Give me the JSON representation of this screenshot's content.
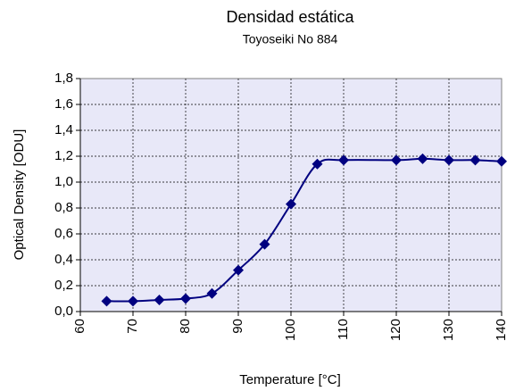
{
  "chart_data": {
    "type": "line",
    "title": "Densidad estática",
    "subtitle": "Toyoseiki No 884",
    "x_label": "Temperature [°C]",
    "y_label": "Optical Density [ODU]",
    "x": [
      65,
      70,
      75,
      80,
      85,
      90,
      95,
      100,
      105,
      110,
      120,
      125,
      130,
      135,
      140
    ],
    "series": [
      {
        "color": "#000080",
        "values": [
          0.08,
          0.08,
          0.09,
          0.1,
          0.14,
          0.32,
          0.52,
          0.83,
          1.14,
          1.17,
          1.17,
          1.18,
          1.17,
          1.17,
          1.16
        ]
      }
    ],
    "xlim": [
      60,
      140
    ],
    "xticks": [
      60,
      70,
      80,
      90,
      100,
      110,
      120,
      130,
      140
    ],
    "ylim": [
      0,
      1.8
    ],
    "yticks": [
      {
        "value": 0,
        "label": "0,0"
      },
      {
        "value": 0.2,
        "label": "0,2"
      },
      {
        "value": 0.4,
        "label": "0,4"
      },
      {
        "value": 0.6,
        "label": "0,6"
      },
      {
        "value": 0.8,
        "label": "0,8"
      },
      {
        "value": 1.0,
        "label": "1,0"
      },
      {
        "value": 1.2,
        "label": "1,2"
      },
      {
        "value": 1.4,
        "label": "1,4"
      },
      {
        "value": 1.6,
        "label": "1,6"
      },
      {
        "value": 1.8,
        "label": "1,8"
      }
    ],
    "grid": true,
    "smooth": true,
    "marker": "diamond"
  }
}
